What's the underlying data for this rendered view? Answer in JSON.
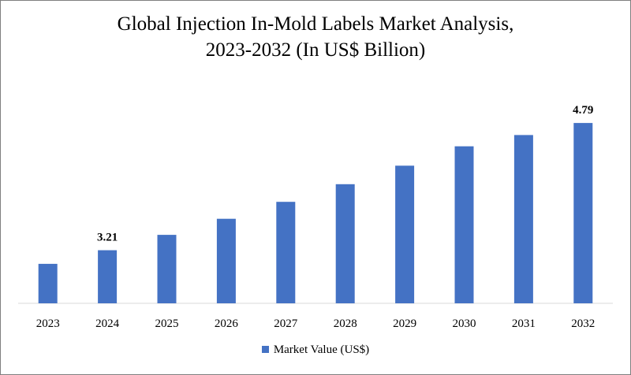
{
  "chart_data": {
    "type": "bar",
    "title_line1": "Global Injection In-Mold Labels Market Analysis,",
    "title_line2": "2023-2032 (In US$ Billion)",
    "categories": [
      "2023",
      "2024",
      "2025",
      "2026",
      "2027",
      "2028",
      "2029",
      "2030",
      "2031",
      "2032"
    ],
    "series": [
      {
        "name": "Market Value (US$)",
        "color": "#4472c4",
        "values": [
          3.04,
          3.21,
          3.4,
          3.6,
          3.81,
          4.03,
          4.26,
          4.5,
          4.64,
          4.79
        ],
        "data_labels": [
          null,
          "3.21",
          null,
          null,
          null,
          null,
          null,
          null,
          null,
          "4.79"
        ]
      }
    ],
    "xlabel": "",
    "ylabel": "",
    "ylim": [
      2.55,
      4.83
    ],
    "grid": false,
    "legend_position": "bottom"
  }
}
